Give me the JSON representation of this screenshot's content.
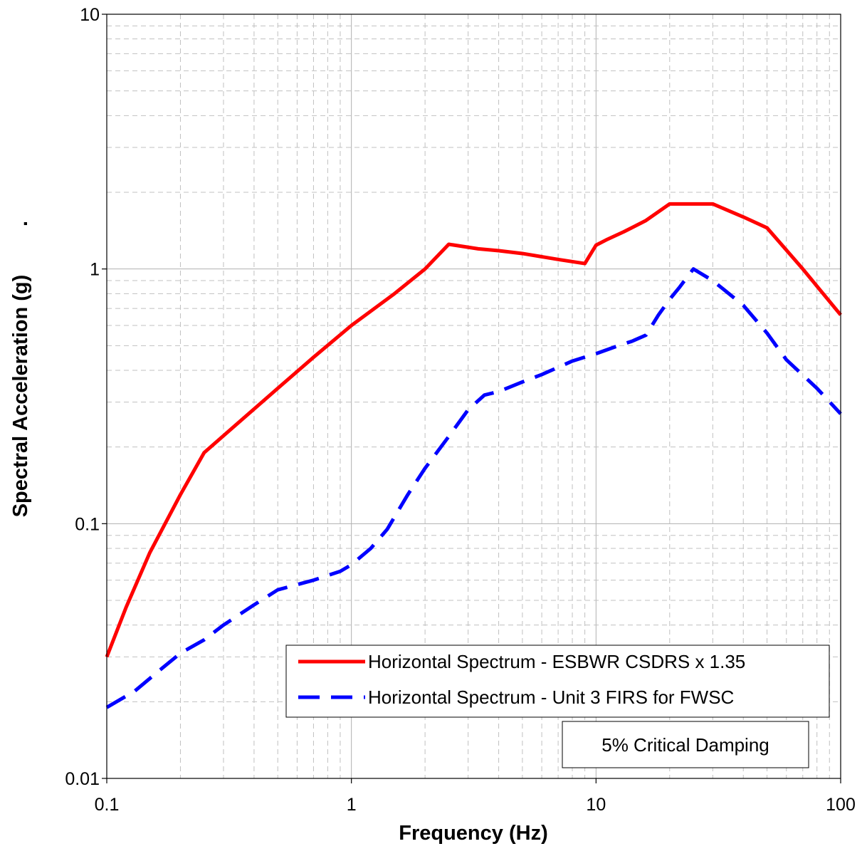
{
  "chart_data": {
    "type": "line",
    "title": "",
    "xlabel": "Frequency (Hz)",
    "ylabel": "Spectral Acceleration (g)",
    "ylabel_suffix": ".",
    "x_scale": "log",
    "y_scale": "log",
    "xlim": [
      0.1,
      100
    ],
    "ylim": [
      0.01,
      10
    ],
    "x_ticks": [
      "0.1",
      "1",
      "10",
      "100"
    ],
    "y_ticks": [
      "0.01",
      "0.1",
      "1",
      "10"
    ],
    "grid": true,
    "legend_position": "bottom-right",
    "annotation": "5%  Critical Damping",
    "series": [
      {
        "name": "Horizontal Spectrum  - ESBWR CSDRS x 1.35",
        "color": "#ff0000",
        "style": "solid",
        "points": [
          [
            0.1,
            0.03
          ],
          [
            0.12,
            0.047
          ],
          [
            0.15,
            0.077
          ],
          [
            0.2,
            0.13
          ],
          [
            0.25,
            0.19
          ],
          [
            0.33,
            0.24
          ],
          [
            0.5,
            0.34
          ],
          [
            0.7,
            0.45
          ],
          [
            1.0,
            0.6
          ],
          [
            1.5,
            0.8
          ],
          [
            2.0,
            1.0
          ],
          [
            2.5,
            1.25
          ],
          [
            3.3,
            1.2
          ],
          [
            4.0,
            1.18
          ],
          [
            5.0,
            1.15
          ],
          [
            7.0,
            1.09
          ],
          [
            9.0,
            1.05
          ],
          [
            10.0,
            1.24
          ],
          [
            11.0,
            1.3
          ],
          [
            13.0,
            1.4
          ],
          [
            16.0,
            1.55
          ],
          [
            20.0,
            1.8
          ],
          [
            25.0,
            1.8
          ],
          [
            30.0,
            1.8
          ],
          [
            40.0,
            1.6
          ],
          [
            50.0,
            1.45
          ],
          [
            70.0,
            1.0
          ],
          [
            100.0,
            0.66
          ]
        ]
      },
      {
        "name": "Horizontal Spectrum - Unit 3 FIRS for FWSC",
        "color": "#0000ff",
        "style": "dashed",
        "points": [
          [
            0.1,
            0.019
          ],
          [
            0.13,
            0.022
          ],
          [
            0.16,
            0.026
          ],
          [
            0.2,
            0.031
          ],
          [
            0.25,
            0.035
          ],
          [
            0.3,
            0.04
          ],
          [
            0.4,
            0.048
          ],
          [
            0.5,
            0.055
          ],
          [
            0.7,
            0.06
          ],
          [
            0.9,
            0.065
          ],
          [
            1.0,
            0.069
          ],
          [
            1.2,
            0.08
          ],
          [
            1.4,
            0.095
          ],
          [
            1.7,
            0.13
          ],
          [
            2.0,
            0.165
          ],
          [
            2.5,
            0.22
          ],
          [
            3.0,
            0.28
          ],
          [
            3.5,
            0.32
          ],
          [
            4.0,
            0.33
          ],
          [
            5.0,
            0.36
          ],
          [
            6.0,
            0.385
          ],
          [
            8.0,
            0.435
          ],
          [
            10.0,
            0.465
          ],
          [
            12.0,
            0.495
          ],
          [
            14.0,
            0.52
          ],
          [
            16.0,
            0.55
          ],
          [
            18.0,
            0.66
          ],
          [
            20.0,
            0.76
          ],
          [
            22.0,
            0.85
          ],
          [
            25.0,
            1.0
          ],
          [
            30.0,
            0.9
          ],
          [
            40.0,
            0.72
          ],
          [
            50.0,
            0.56
          ],
          [
            60.0,
            0.44
          ],
          [
            80.0,
            0.34
          ],
          [
            100.0,
            0.27
          ]
        ]
      }
    ]
  }
}
